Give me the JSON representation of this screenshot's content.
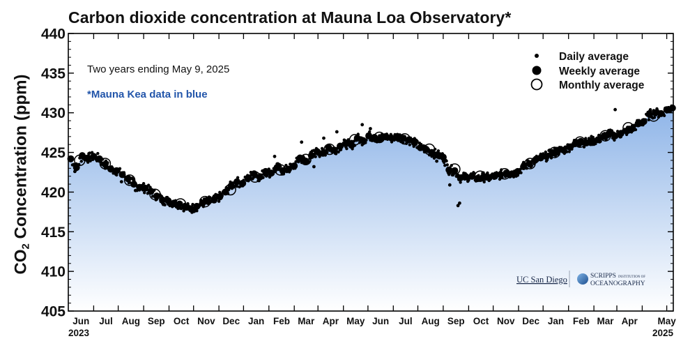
{
  "chart_data": {
    "type": "scatter",
    "title": "Carbon dioxide concentration at Mauna Loa Observatory*",
    "subtitle": "Two years ending May 9, 2025",
    "note": "*Mauna Kea data in blue",
    "ylabel_main": "CO",
    "ylabel_sub": "2",
    "ylabel_rest": " Concentration (ppm)",
    "ylim": [
      405,
      440
    ],
    "yticks": [
      405,
      410,
      415,
      420,
      425,
      430,
      435,
      440
    ],
    "xlim": [
      "2023-05-01",
      "2025-05-09"
    ],
    "x_months": [
      "Jun",
      "Jul",
      "Aug",
      "Sep",
      "Oct",
      "Nov",
      "Dec",
      "Jan",
      "Feb",
      "Mar",
      "Apr",
      "May",
      "Jun",
      "Jul",
      "Aug",
      "Sep",
      "Oct",
      "Nov",
      "Dec",
      "Jan",
      "Feb",
      "Mar",
      "Apr",
      "May"
    ],
    "x_years": [
      "2023",
      "2025"
    ],
    "legend": [
      {
        "label": "Daily average",
        "marker": "small-dot"
      },
      {
        "label": "Weekly average",
        "marker": "filled-circle"
      },
      {
        "label": "Monthly average",
        "marker": "open-circle"
      }
    ],
    "legend_position": "top-right",
    "fill_color_top": "#8fb5e8",
    "fill_color_bottom": "#ffffff",
    "note_color": "#2255aa",
    "monthly": [
      {
        "x": "2023-05-15",
        "y": 424.0
      },
      {
        "x": "2023-06-15",
        "y": 423.6
      },
      {
        "x": "2023-07-15",
        "y": 421.5
      },
      {
        "x": "2023-08-15",
        "y": 419.7
      },
      {
        "x": "2023-09-15",
        "y": 418.5
      },
      {
        "x": "2023-10-15",
        "y": 418.8
      },
      {
        "x": "2023-11-15",
        "y": 420.3
      },
      {
        "x": "2023-12-15",
        "y": 421.9
      },
      {
        "x": "2024-01-15",
        "y": 422.8
      },
      {
        "x": "2024-02-15",
        "y": 424.1
      },
      {
        "x": "2024-03-15",
        "y": 425.4
      },
      {
        "x": "2024-04-15",
        "y": 426.6
      },
      {
        "x": "2024-05-15",
        "y": 426.9
      },
      {
        "x": "2024-06-15",
        "y": 426.7
      },
      {
        "x": "2024-07-15",
        "y": 425.4
      },
      {
        "x": "2024-08-15",
        "y": 422.9
      },
      {
        "x": "2024-09-15",
        "y": 422.0
      },
      {
        "x": "2024-10-15",
        "y": 422.3
      },
      {
        "x": "2024-11-15",
        "y": 423.6
      },
      {
        "x": "2024-12-15",
        "y": 425.0
      },
      {
        "x": "2025-01-15",
        "y": 426.3
      },
      {
        "x": "2025-02-15",
        "y": 427.1
      },
      {
        "x": "2025-03-15",
        "y": 428.1
      },
      {
        "x": "2025-04-15",
        "y": 429.6
      }
    ],
    "weekly": [
      {
        "x": "2023-05-04",
        "y": 424.2
      },
      {
        "x": "2023-05-11",
        "y": 423.1
      },
      {
        "x": "2023-05-18",
        "y": 424.6
      },
      {
        "x": "2023-05-25",
        "y": 424.3
      },
      {
        "x": "2023-06-01",
        "y": 424.5
      },
      {
        "x": "2023-06-08",
        "y": 424.2
      },
      {
        "x": "2023-06-15",
        "y": 423.5
      },
      {
        "x": "2023-06-22",
        "y": 422.9
      },
      {
        "x": "2023-06-29",
        "y": 422.7
      },
      {
        "x": "2023-07-06",
        "y": 422.2
      },
      {
        "x": "2023-07-13",
        "y": 421.7
      },
      {
        "x": "2023-07-20",
        "y": 421.0
      },
      {
        "x": "2023-07-27",
        "y": 420.6
      },
      {
        "x": "2023-08-03",
        "y": 420.5
      },
      {
        "x": "2023-08-10",
        "y": 420.1
      },
      {
        "x": "2023-08-17",
        "y": 419.5
      },
      {
        "x": "2023-08-24",
        "y": 419.0
      },
      {
        "x": "2023-08-31",
        "y": 418.9
      },
      {
        "x": "2023-09-07",
        "y": 418.6
      },
      {
        "x": "2023-09-14",
        "y": 418.5
      },
      {
        "x": "2023-09-21",
        "y": 418.1
      },
      {
        "x": "2023-09-28",
        "y": 417.9
      },
      {
        "x": "2023-10-05",
        "y": 418.2
      },
      {
        "x": "2023-10-12",
        "y": 418.6
      },
      {
        "x": "2023-10-19",
        "y": 418.8
      },
      {
        "x": "2023-10-26",
        "y": 419.0
      },
      {
        "x": "2023-11-02",
        "y": 419.4
      },
      {
        "x": "2023-11-09",
        "y": 420.0
      },
      {
        "x": "2023-11-16",
        "y": 420.8
      },
      {
        "x": "2023-11-23",
        "y": 421.3
      },
      {
        "x": "2023-11-30",
        "y": 421.1
      },
      {
        "x": "2023-12-07",
        "y": 421.8
      },
      {
        "x": "2023-12-14",
        "y": 422.3
      },
      {
        "x": "2023-12-21",
        "y": 421.9
      },
      {
        "x": "2023-12-28",
        "y": 422.6
      },
      {
        "x": "2024-01-04",
        "y": 422.4
      },
      {
        "x": "2024-01-11",
        "y": 423.1
      },
      {
        "x": "2024-01-18",
        "y": 422.7
      },
      {
        "x": "2024-01-25",
        "y": 422.9
      },
      {
        "x": "2024-02-01",
        "y": 423.3
      },
      {
        "x": "2024-02-08",
        "y": 424.3
      },
      {
        "x": "2024-02-15",
        "y": 423.9
      },
      {
        "x": "2024-02-22",
        "y": 424.6
      },
      {
        "x": "2024-02-29",
        "y": 425.1
      },
      {
        "x": "2024-03-07",
        "y": 424.9
      },
      {
        "x": "2024-03-14",
        "y": 425.6
      },
      {
        "x": "2024-03-21",
        "y": 425.3
      },
      {
        "x": "2024-03-28",
        "y": 425.8
      },
      {
        "x": "2024-04-04",
        "y": 426.1
      },
      {
        "x": "2024-04-11",
        "y": 425.9
      },
      {
        "x": "2024-04-18",
        "y": 426.8
      },
      {
        "x": "2024-04-25",
        "y": 426.5
      },
      {
        "x": "2024-05-02",
        "y": 427.1
      },
      {
        "x": "2024-05-09",
        "y": 426.9
      },
      {
        "x": "2024-05-16",
        "y": 426.7
      },
      {
        "x": "2024-05-23",
        "y": 427.0
      },
      {
        "x": "2024-05-30",
        "y": 426.8
      },
      {
        "x": "2024-06-06",
        "y": 427.0
      },
      {
        "x": "2024-06-13",
        "y": 426.8
      },
      {
        "x": "2024-06-20",
        "y": 426.6
      },
      {
        "x": "2024-06-27",
        "y": 426.2
      },
      {
        "x": "2024-07-04",
        "y": 425.6
      },
      {
        "x": "2024-07-11",
        "y": 425.4
      },
      {
        "x": "2024-07-18",
        "y": 425.0
      },
      {
        "x": "2024-07-25",
        "y": 424.7
      },
      {
        "x": "2024-08-01",
        "y": 424.4
      },
      {
        "x": "2024-08-08",
        "y": 422.8
      },
      {
        "x": "2024-08-15",
        "y": 422.7
      },
      {
        "x": "2024-08-22",
        "y": 421.8
      },
      {
        "x": "2024-08-29",
        "y": 421.9
      },
      {
        "x": "2024-09-05",
        "y": 422.0
      },
      {
        "x": "2024-09-12",
        "y": 421.7
      },
      {
        "x": "2024-09-19",
        "y": 421.9
      },
      {
        "x": "2024-09-26",
        "y": 421.8
      },
      {
        "x": "2024-10-03",
        "y": 422.0
      },
      {
        "x": "2024-10-10",
        "y": 422.2
      },
      {
        "x": "2024-10-17",
        "y": 422.4
      },
      {
        "x": "2024-10-24",
        "y": 422.3
      },
      {
        "x": "2024-10-31",
        "y": 422.6
      },
      {
        "x": "2024-11-07",
        "y": 423.2
      },
      {
        "x": "2024-11-14",
        "y": 423.6
      },
      {
        "x": "2024-11-21",
        "y": 424.0
      },
      {
        "x": "2024-11-28",
        "y": 424.3
      },
      {
        "x": "2024-12-05",
        "y": 424.5
      },
      {
        "x": "2024-12-12",
        "y": 424.9
      },
      {
        "x": "2024-12-19",
        "y": 425.2
      },
      {
        "x": "2024-12-26",
        "y": 425.3
      },
      {
        "x": "2025-01-02",
        "y": 425.7
      },
      {
        "x": "2025-01-09",
        "y": 426.1
      },
      {
        "x": "2025-01-16",
        "y": 426.4
      },
      {
        "x": "2025-01-23",
        "y": 426.2
      },
      {
        "x": "2025-01-30",
        "y": 426.5
      },
      {
        "x": "2025-02-06",
        "y": 426.6
      },
      {
        "x": "2025-02-13",
        "y": 427.0
      },
      {
        "x": "2025-02-20",
        "y": 427.3
      },
      {
        "x": "2025-02-27",
        "y": 427.1
      },
      {
        "x": "2025-03-06",
        "y": 427.4
      },
      {
        "x": "2025-03-13",
        "y": 427.7
      },
      {
        "x": "2025-03-20",
        "y": 428.0
      },
      {
        "x": "2025-03-27",
        "y": 428.6
      },
      {
        "x": "2025-04-03",
        "y": 428.9
      },
      {
        "x": "2025-04-10",
        "y": 429.8
      },
      {
        "x": "2025-04-17",
        "y": 430.0
      },
      {
        "x": "2025-04-24",
        "y": 429.9
      },
      {
        "x": "2025-05-01",
        "y": 430.4
      },
      {
        "x": "2025-05-08",
        "y": 430.6
      }
    ],
    "daily_outliers": [
      {
        "x": "2023-05-09",
        "y": 422.6
      },
      {
        "x": "2023-07-05",
        "y": 421.3
      },
      {
        "x": "2023-07-22",
        "y": 420.2
      },
      {
        "x": "2024-01-08",
        "y": 424.5
      },
      {
        "x": "2024-02-10",
        "y": 426.3
      },
      {
        "x": "2024-03-08",
        "y": 426.8
      },
      {
        "x": "2024-03-24",
        "y": 427.6
      },
      {
        "x": "2024-04-24",
        "y": 428.5
      },
      {
        "x": "2024-05-04",
        "y": 428.0
      },
      {
        "x": "2024-06-30",
        "y": 426.4
      },
      {
        "x": "2024-07-24",
        "y": 423.9
      },
      {
        "x": "2024-08-19",
        "y": 418.3
      },
      {
        "x": "2024-08-21",
        "y": 418.6
      },
      {
        "x": "2024-08-09",
        "y": 420.9
      },
      {
        "x": "2025-02-27",
        "y": 430.4
      },
      {
        "x": "2025-04-30",
        "y": 430.3
      },
      {
        "x": "2024-02-25",
        "y": 423.2
      },
      {
        "x": "2023-10-01",
        "y": 417.6
      }
    ],
    "logo_left": "UC San Diego",
    "logo_right_line1": "SCRIPPS",
    "logo_right_small": "INSTITUTION OF",
    "logo_right_line2": "OCEANOGRAPHY"
  }
}
